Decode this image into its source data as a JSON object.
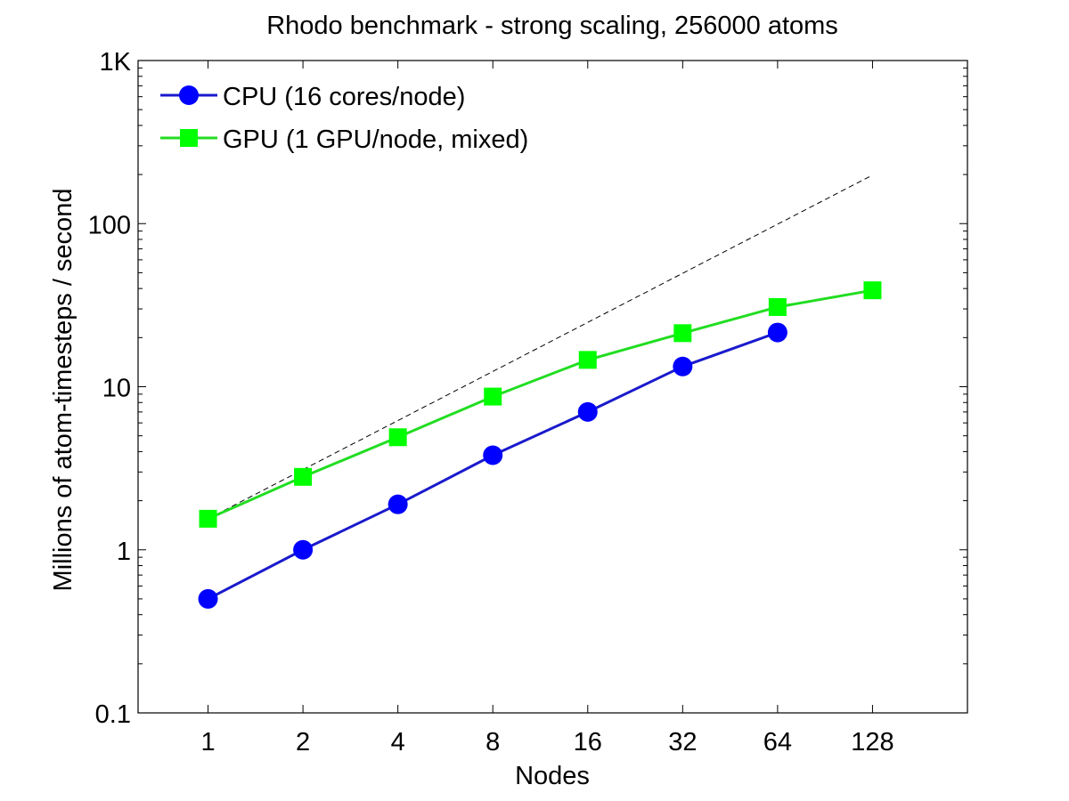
{
  "chart_data": {
    "type": "line",
    "title": "Rhodo benchmark - strong scaling, 256000 atoms",
    "xlabel": "Nodes",
    "ylabel": "Millions of atom-timesteps / second",
    "x_scale": "log2",
    "y_scale": "log10",
    "xlim": [
      0.6,
      256
    ],
    "ylim": [
      0.1,
      1000
    ],
    "x_ticks": [
      1,
      2,
      4,
      8,
      16,
      32,
      64,
      128
    ],
    "x_tick_labels": [
      "1",
      "2",
      "4",
      "8",
      "16",
      "32",
      "64",
      "128"
    ],
    "y_ticks": [
      0.1,
      1,
      10,
      100,
      1000
    ],
    "y_tick_labels": [
      "0.1",
      "1",
      "10",
      "100",
      "1K"
    ],
    "grid": false,
    "legend_position": "top-left",
    "series": [
      {
        "name": "CPU (16 cores/node)",
        "color": "#0000ff",
        "line_color": "#1a1acc",
        "marker": "circle",
        "x": [
          1,
          2,
          4,
          8,
          16,
          32,
          64
        ],
        "values": [
          0.5,
          1.0,
          1.9,
          3.8,
          7.0,
          13.3,
          21.5
        ]
      },
      {
        "name": "GPU (1 GPU/node, mixed)",
        "color": "#00ff00",
        "line_color": "#22dd22",
        "marker": "square",
        "x": [
          1,
          2,
          4,
          8,
          16,
          32,
          64,
          128
        ],
        "values": [
          1.55,
          2.8,
          4.9,
          8.7,
          14.6,
          21.3,
          30.8,
          39.0
        ]
      }
    ],
    "reference_line": {
      "style": "dashed",
      "color": "#000000",
      "x": [
        1,
        128
      ],
      "values": [
        1.55,
        198.4
      ]
    }
  }
}
